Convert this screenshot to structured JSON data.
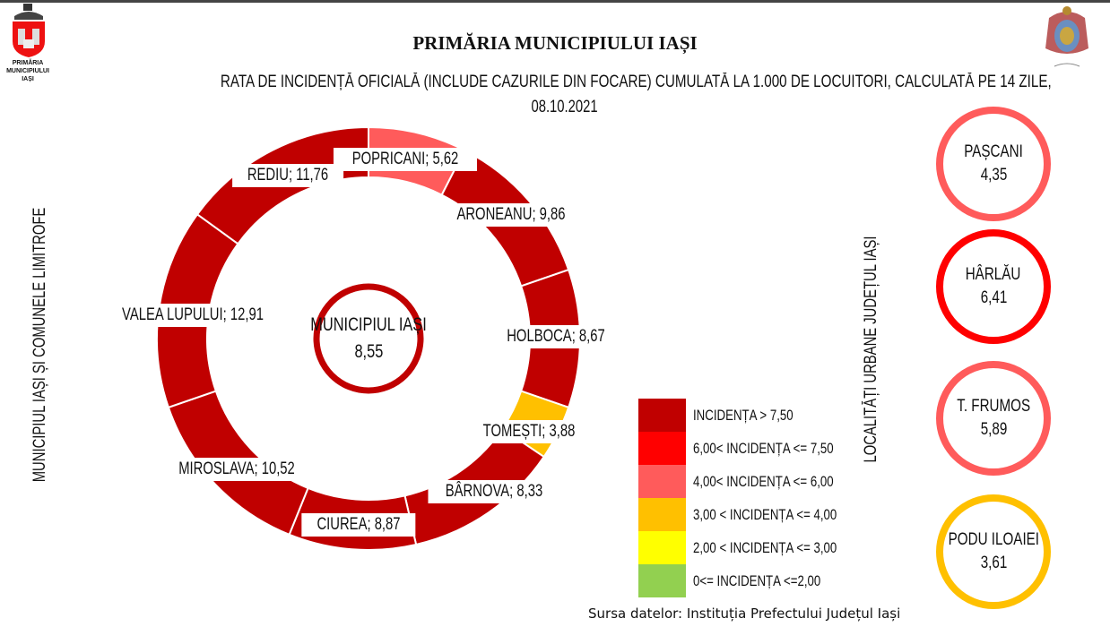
{
  "header": {
    "title": "PRIMĂRIA MUNICIPIULUI IAȘI",
    "subtitle_line1": "RATA DE INCIDENȚĂ OFICIALĂ (INCLUDE CAZURILE DIN FOCARE) CUMULATĂ LA 1.000 DE LOCUITORI, CALCULATĂ PE 14 ZILE,",
    "subtitle_line2": "08.10.2021",
    "logo_left_text": "PRIMĂRIA MUNICIPIULUI IAȘI"
  },
  "chart_data": {
    "type": "pie",
    "title": "RATA DE INCIDENȚĂ OFICIALĂ CUMULATĂ LA 1.000 DE LOCUITORI, 14 ZILE, 08.10.2021",
    "group_label": "MUNICIPIUL IAȘI ȘI COMUNELE LIMITROFE",
    "center": {
      "name": "MUNICIPIUL IAȘI",
      "value": "8,55",
      "color": "#C00000"
    },
    "segments": [
      {
        "name": "POPRICANI",
        "value": "5,62",
        "color": "#FF5B5B"
      },
      {
        "name": "ARONEANU",
        "value": "9,86",
        "color": "#C00000"
      },
      {
        "name": "HOLBOCA",
        "value": "8,67",
        "color": "#C00000"
      },
      {
        "name": "TOMEȘTI",
        "value": "3,88",
        "color": "#FFC000"
      },
      {
        "name": "BÂRNOVA",
        "value": "8,33",
        "color": "#C00000"
      },
      {
        "name": "CIUREA",
        "value": "8,87",
        "color": "#C00000"
      },
      {
        "name": "MIROSLAVA",
        "value": "10,52",
        "color": "#C00000"
      },
      {
        "name": "VALEA LUPULUI",
        "value": "12,91",
        "color": "#C00000"
      },
      {
        "name": "REDIU",
        "value": "11,76",
        "color": "#C00000"
      }
    ],
    "urban_label": "LOCALITĂȚI URBANE JUDEȚUL IAȘI",
    "urban": [
      {
        "name": "PAȘCANI",
        "value": "4,35",
        "color": "#FF5B5B"
      },
      {
        "name": "HÂRLĂU",
        "value": "6,41",
        "color": "#FF0000"
      },
      {
        "name": "T. FRUMOS",
        "value": "5,89",
        "color": "#FF5B5B"
      },
      {
        "name": "PODU ILOAIEI",
        "value": "3,61",
        "color": "#FFC000"
      }
    ],
    "legend": [
      {
        "label": "INCIDENȚA > 7,50",
        "color": "#C00000"
      },
      {
        "label": "6,00< INCIDENȚA <= 7,50",
        "color": "#FF0000"
      },
      {
        "label": "4,00< INCIDENȚA <= 6,00",
        "color": "#FF5B5B"
      },
      {
        "label": "3,00 < INCIDENȚA <= 4,00",
        "color": "#FFC000"
      },
      {
        "label": "2,00 < INCIDENȚA <= 3,00",
        "color": "#FFFF00"
      },
      {
        "label": "0<= INCIDENȚA <=2,00",
        "color": "#92D050"
      }
    ]
  },
  "footer": {
    "source": "Sursa datelor: Instituția Prefectului Județul Iași"
  }
}
